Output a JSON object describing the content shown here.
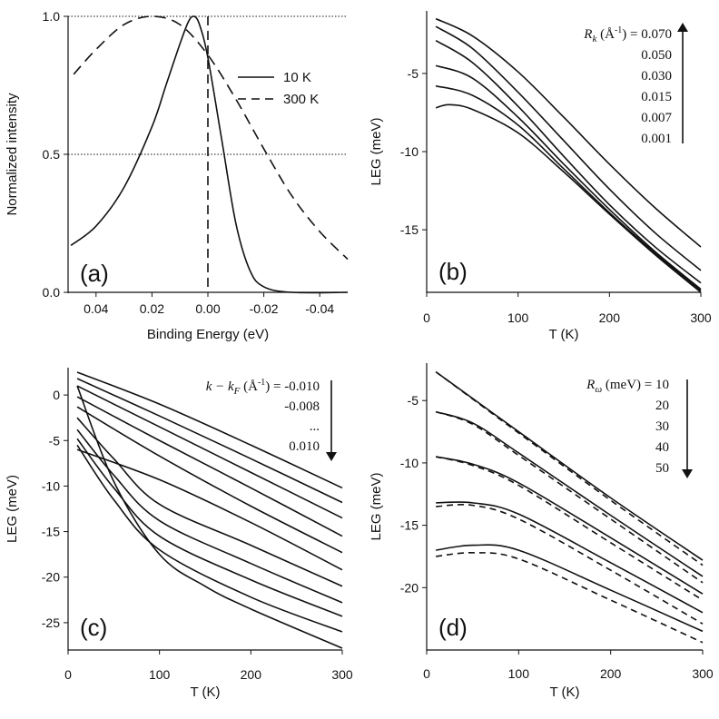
{
  "chart_data": [
    {
      "id": "a",
      "type": "line",
      "panel_label": "(a)",
      "xlabel": "Binding Energy  (eV)",
      "ylabel": "Normalized intensity",
      "xlim": [
        0.05,
        -0.05
      ],
      "ylim": [
        0.0,
        1.0
      ],
      "xticks": [
        0.04,
        0.02,
        0.0,
        -0.02,
        -0.04
      ],
      "xtick_labels": [
        "0.04",
        "0.02",
        "0.00",
        "-0.02",
        "-0.04"
      ],
      "yticks": [
        0.0,
        0.5,
        1.0
      ],
      "ytick_labels": [
        "0.0",
        "0.5",
        "1.0"
      ],
      "reference_lines": {
        "horizontal": [
          0.0,
          0.5,
          1.0
        ],
        "vertical": [
          0.0
        ]
      },
      "legend": [
        {
          "label": "10 K",
          "style": "solid"
        },
        {
          "label": "300 K",
          "style": "dashed"
        }
      ],
      "series": [
        {
          "name": "10 K",
          "style": "solid",
          "width": 2.4,
          "x": [
            0.049,
            0.04,
            0.03,
            0.02,
            0.015,
            0.01,
            0.007,
            0.005,
            0.003,
            0.0,
            -0.005,
            -0.01,
            -0.015,
            -0.02,
            -0.03,
            -0.05
          ],
          "y": [
            0.17,
            0.24,
            0.38,
            0.6,
            0.75,
            0.9,
            0.98,
            1.0,
            0.97,
            0.85,
            0.55,
            0.25,
            0.08,
            0.02,
            0.0,
            0.0
          ]
        },
        {
          "name": "300 K",
          "style": "dashed",
          "width": 2.4,
          "x": [
            0.048,
            0.04,
            0.03,
            0.02,
            0.01,
            0.0,
            -0.01,
            -0.02,
            -0.03,
            -0.04,
            -0.05
          ],
          "y": [
            0.79,
            0.88,
            0.97,
            1.0,
            0.97,
            0.86,
            0.7,
            0.52,
            0.35,
            0.22,
            0.12
          ]
        }
      ]
    },
    {
      "id": "b",
      "type": "line",
      "panel_label": "(b)",
      "xlabel": "T  (K)",
      "ylabel": "LEG  (meV)",
      "xlim": [
        0,
        300
      ],
      "ylim": [
        -19,
        -1
      ],
      "xticks": [
        0,
        100,
        200,
        300
      ],
      "xtick_labels": [
        "0",
        "100",
        "200",
        "300"
      ],
      "yticks": [
        -5,
        -10,
        -15
      ],
      "ytick_labels": [
        "-5",
        "-10",
        "-15"
      ],
      "annotation": {
        "prefix": "R",
        "subscript": "k",
        "unit_text": " (Å",
        "unit_sup": "-1",
        "suffix": ") = 0.070",
        "values": [
          "0.050",
          "0.030",
          "0.015",
          "0.007",
          "0.001"
        ],
        "arrow": "up"
      },
      "series": [
        {
          "name": "0.070",
          "x": [
            10,
            50,
            100,
            150,
            200,
            250,
            300
          ],
          "y": [
            -1.5,
            -2.6,
            -4.9,
            -7.8,
            -10.8,
            -13.6,
            -16.1
          ]
        },
        {
          "name": "0.050",
          "x": [
            10,
            50,
            100,
            150,
            200,
            250,
            300
          ],
          "y": [
            -2.0,
            -3.4,
            -6.2,
            -9.3,
            -12.4,
            -15.2,
            -17.6
          ]
        },
        {
          "name": "0.030",
          "x": [
            10,
            50,
            100,
            150,
            200,
            250,
            300
          ],
          "y": [
            -2.9,
            -4.3,
            -7.1,
            -10.3,
            -13.4,
            -16.1,
            -18.4
          ]
        },
        {
          "name": "0.015",
          "x": [
            10,
            50,
            100,
            150,
            200,
            250,
            300
          ],
          "y": [
            -4.5,
            -5.3,
            -7.8,
            -10.8,
            -13.7,
            -16.4,
            -18.8
          ]
        },
        {
          "name": "0.007",
          "width": 2.8,
          "x": [
            10,
            50,
            100,
            150,
            200,
            250,
            300
          ],
          "y": [
            -5.8,
            -6.4,
            -8.3,
            -11.1,
            -13.9,
            -16.5,
            -18.9
          ]
        },
        {
          "name": "0.001",
          "x": [
            10,
            25,
            50,
            100,
            150,
            200,
            250,
            300
          ],
          "y": [
            -7.2,
            -7.0,
            -7.3,
            -8.8,
            -11.3,
            -14.0,
            -16.6,
            -19.0
          ]
        }
      ]
    },
    {
      "id": "c",
      "type": "line",
      "panel_label": "(c)",
      "xlabel": "T  (K)",
      "ylabel": "LEG  (meV)",
      "xlim": [
        0,
        300
      ],
      "ylim": [
        -28,
        3
      ],
      "xticks": [
        0,
        100,
        200,
        300
      ],
      "xtick_labels": [
        "0",
        "100",
        "200",
        "300"
      ],
      "yticks": [
        0,
        -5,
        -10,
        -15,
        -20,
        -25
      ],
      "ytick_labels": [
        "0",
        "-5",
        "-10",
        "-15",
        "-20",
        "-25"
      ],
      "annotation": {
        "prefix": "k − k",
        "subscript": "F",
        "unit_text": " (Å",
        "unit_sup": "-1",
        "suffix": ") = -0.010",
        "values": [
          "-0.008",
          "...",
          "0.010"
        ],
        "arrow": "down"
      },
      "series": [
        {
          "name": "-0.010",
          "x": [
            10,
            100,
            200,
            300
          ],
          "y": [
            2.5,
            -1.0,
            -5.5,
            -10.2
          ]
        },
        {
          "name": "-0.008",
          "x": [
            10,
            100,
            200,
            300
          ],
          "y": [
            1.8,
            -2.3,
            -7.0,
            -11.8
          ]
        },
        {
          "name": "-0.006",
          "x": [
            10,
            100,
            200,
            300
          ],
          "y": [
            1.0,
            -3.5,
            -8.5,
            -13.5
          ]
        },
        {
          "name": "-0.004",
          "x": [
            10,
            100,
            200,
            300
          ],
          "y": [
            -0.2,
            -5.0,
            -10.2,
            -15.5
          ]
        },
        {
          "name": "-0.002",
          "x": [
            10,
            100,
            200,
            300
          ],
          "y": [
            -1.3,
            -6.7,
            -12.2,
            -17.3
          ]
        },
        {
          "name": "0.000",
          "width": 2.8,
          "x": [
            10,
            100,
            200,
            300
          ],
          "y": [
            -6.0,
            -9.3,
            -14.0,
            -19.2
          ]
        },
        {
          "name": "0.002",
          "x": [
            10,
            50,
            100,
            200,
            300
          ],
          "y": [
            -2.5,
            -7.0,
            -12.0,
            -16.5,
            -21.0
          ]
        },
        {
          "name": "0.004",
          "x": [
            10,
            50,
            100,
            200,
            300
          ],
          "y": [
            -3.8,
            -8.8,
            -13.8,
            -18.5,
            -22.8
          ]
        },
        {
          "name": "0.006",
          "x": [
            10,
            50,
            100,
            200,
            300
          ],
          "y": [
            -4.8,
            -10.2,
            -15.5,
            -20.3,
            -24.3
          ]
        },
        {
          "name": "0.008",
          "x": [
            10,
            50,
            100,
            200,
            300
          ],
          "y": [
            -5.5,
            -11.5,
            -17.0,
            -22.2,
            -26.0
          ]
        },
        {
          "name": "0.010",
          "x": [
            10,
            50,
            100,
            150,
            200,
            300
          ],
          "y": [
            1.0,
            -9.5,
            -17.5,
            -21.0,
            -23.5,
            -27.8
          ]
        }
      ]
    },
    {
      "id": "d",
      "type": "line",
      "panel_label": "(d)",
      "xlabel": "T  (K)",
      "ylabel": "LEG  (meV)",
      "xlim": [
        0,
        300
      ],
      "ylim": [
        -25,
        -2
      ],
      "xticks": [
        0,
        100,
        200,
        300
      ],
      "xtick_labels": [
        "0",
        "100",
        "200",
        "300"
      ],
      "yticks": [
        -5,
        -10,
        -15,
        -20
      ],
      "ytick_labels": [
        "-5",
        "-10",
        "-15",
        "-20"
      ],
      "annotation": {
        "prefix": "R",
        "subscript": "ω",
        "unit_text": " (meV)",
        "unit_sup": "",
        "suffix": " = 10",
        "values": [
          "20",
          "30",
          "40",
          "50"
        ],
        "arrow": "down"
      },
      "series": [
        {
          "name": "10 solid",
          "style": "solid",
          "x": [
            10,
            100,
            200,
            300
          ],
          "y": [
            -2.7,
            -7.5,
            -12.8,
            -17.8
          ]
        },
        {
          "name": "10 dashed",
          "style": "dashed",
          "x": [
            10,
            100,
            200,
            300
          ],
          "y": [
            -2.7,
            -7.6,
            -13.0,
            -18.2
          ]
        },
        {
          "name": "20 solid",
          "style": "solid",
          "width": 2.8,
          "x": [
            10,
            50,
            100,
            200,
            300
          ],
          "y": [
            -5.9,
            -6.8,
            -9.2,
            -14.2,
            -19.1
          ]
        },
        {
          "name": "20 dashed",
          "style": "dashed",
          "x": [
            10,
            50,
            100,
            200,
            300
          ],
          "y": [
            -5.9,
            -6.9,
            -9.4,
            -14.5,
            -19.6
          ]
        },
        {
          "name": "30 solid",
          "style": "solid",
          "x": [
            10,
            50,
            100,
            200,
            300
          ],
          "y": [
            -9.5,
            -10.1,
            -11.6,
            -16.0,
            -20.5
          ]
        },
        {
          "name": "30 dashed",
          "style": "dashed",
          "x": [
            10,
            50,
            100,
            200,
            300
          ],
          "y": [
            -9.5,
            -10.2,
            -11.8,
            -16.4,
            -21.0
          ]
        },
        {
          "name": "40 solid",
          "style": "solid",
          "x": [
            10,
            50,
            100,
            200,
            300
          ],
          "y": [
            -13.2,
            -13.2,
            -14.1,
            -18.0,
            -22.0
          ]
        },
        {
          "name": "40 dashed",
          "style": "dashed",
          "x": [
            10,
            50,
            100,
            200,
            300
          ],
          "y": [
            -13.5,
            -13.4,
            -14.5,
            -18.6,
            -22.9
          ]
        },
        {
          "name": "50 solid",
          "style": "solid",
          "x": [
            10,
            50,
            100,
            200,
            300
          ],
          "y": [
            -17.0,
            -16.6,
            -17.0,
            -20.2,
            -23.5
          ]
        },
        {
          "name": "50 dashed",
          "style": "dashed",
          "x": [
            10,
            50,
            100,
            200,
            300
          ],
          "y": [
            -17.5,
            -17.2,
            -17.7,
            -21.0,
            -24.4
          ]
        }
      ]
    }
  ]
}
